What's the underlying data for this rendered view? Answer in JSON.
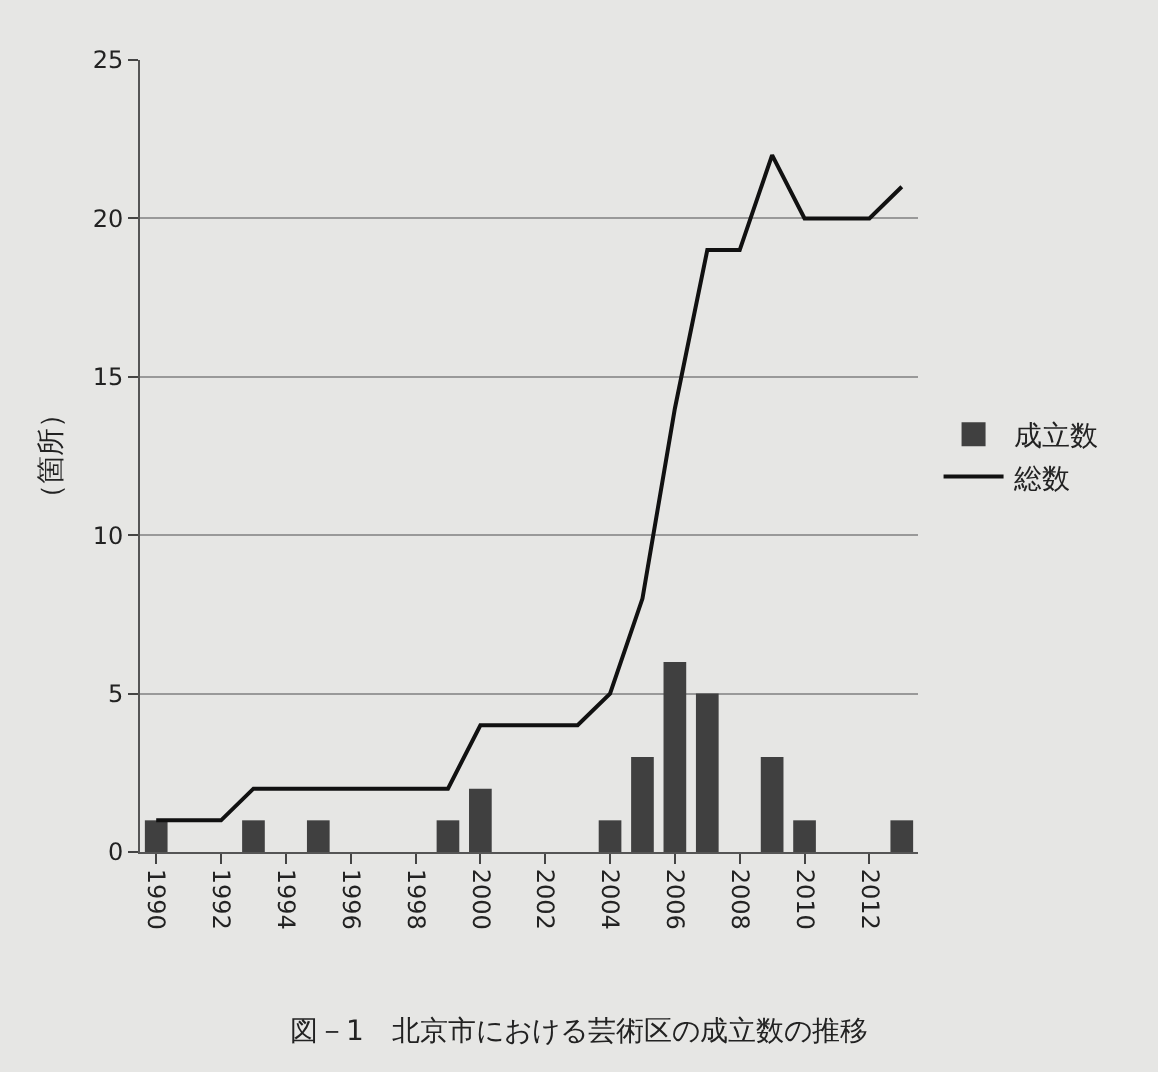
{
  "chart_data": {
    "type": "bar",
    "title": "図－1　北京市における芸術区の成立数の推移",
    "ylabel": "（箇所）",
    "categories": [
      "1990",
      null,
      "1992",
      null,
      "1994",
      null,
      "1996",
      null,
      "1998",
      null,
      "2000",
      null,
      "2002",
      null,
      "2004",
      null,
      "2006",
      null,
      "2008",
      null,
      "2010",
      null,
      "2012",
      null
    ],
    "series": [
      {
        "name": "成立数",
        "color": "#404040",
        "values": [
          1,
          0,
          0,
          1,
          0,
          1,
          0,
          0,
          0,
          1,
          2,
          0,
          0,
          0,
          1,
          3,
          6,
          5,
          0,
          3,
          1,
          0,
          0,
          1
        ]
      },
      {
        "name": "総数",
        "type": "line",
        "color": "#111111",
        "values": [
          1,
          1,
          1,
          2,
          2,
          2,
          2,
          2,
          2,
          2,
          4,
          4,
          4,
          4,
          5,
          8,
          14,
          19,
          19,
          22,
          20,
          20,
          20,
          21
        ]
      }
    ],
    "ylim": [
      0,
      25
    ],
    "yticks": [
      0,
      5,
      10,
      15,
      20,
      25
    ],
    "grid": "y",
    "legend": "right",
    "marker": "none",
    "line_style": "solid"
  }
}
